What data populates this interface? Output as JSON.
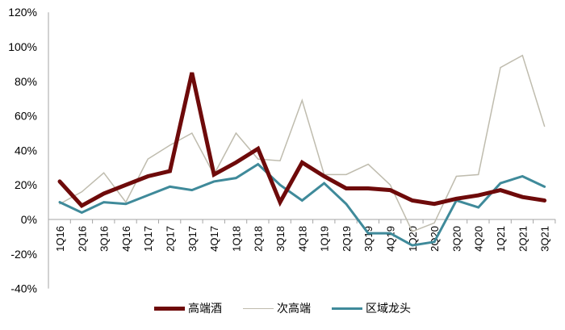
{
  "chart_data": {
    "type": "line",
    "title": "",
    "xlabel": "",
    "ylabel": "",
    "ylim": [
      -0.4,
      1.2
    ],
    "yticks": [
      "120%",
      "100%",
      "80%",
      "60%",
      "40%",
      "20%",
      "0%",
      "-20%",
      "-40%"
    ],
    "grid": false,
    "legend_position": "bottom",
    "categories": [
      "1Q16",
      "2Q16",
      "3Q16",
      "4Q16",
      "1Q17",
      "2Q17",
      "3Q17",
      "4Q17",
      "1Q18",
      "2Q18",
      "3Q18",
      "4Q18",
      "1Q19",
      "2Q19",
      "3Q19",
      "4Q19",
      "1Q20",
      "2Q20",
      "3Q20",
      "4Q20",
      "1Q21",
      "2Q21",
      "3Q21"
    ],
    "series": [
      {
        "name": "高端酒",
        "color": "#6e0a0a",
        "width": 5,
        "values": [
          22,
          8,
          15,
          20,
          25,
          28,
          85,
          26,
          33,
          41,
          10,
          33,
          25,
          18,
          18,
          17,
          11,
          9,
          12,
          14,
          17,
          13,
          11
        ]
      },
      {
        "name": "次高端",
        "color": "#bfbcae",
        "width": 1.5,
        "values": [
          9,
          16,
          27,
          10,
          35,
          43,
          50,
          26,
          50,
          35,
          34,
          69,
          26,
          26,
          32,
          20,
          -7,
          -2,
          25,
          26,
          88,
          95,
          54
        ]
      },
      {
        "name": "区域龙头",
        "color": "#3f8a9a",
        "width": 3,
        "values": [
          10,
          4,
          10,
          9,
          14,
          19,
          17,
          22,
          24,
          32,
          20,
          11,
          21,
          9,
          -8,
          -8,
          -15,
          -13,
          11,
          7,
          21,
          25,
          19
        ]
      }
    ]
  }
}
